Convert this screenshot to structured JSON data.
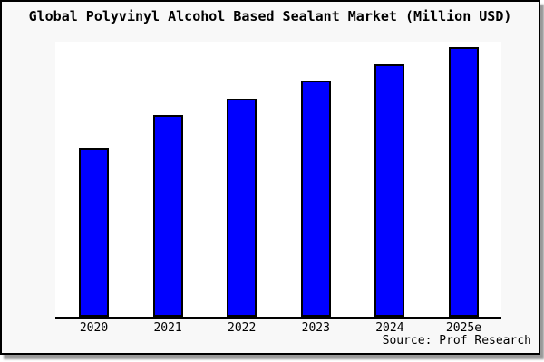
{
  "chart": {
    "title": "Global Polyvinyl Alcohol Based Sealant Market (Million USD)",
    "source": "Source: Prof Research"
  },
  "chart_data": {
    "type": "bar",
    "title": "Global Polyvinyl Alcohol Based Sealant Market (Million USD)",
    "categories": [
      "2020",
      "2021",
      "2022",
      "2023",
      "2024",
      "2025e"
    ],
    "values": [
      62.4,
      74.8,
      81.0,
      87.6,
      93.6,
      100
    ],
    "values_note": "Relative index estimated from bar heights (2025e = 100); no y-axis scale is shown in the chart",
    "xlabel": "",
    "ylabel": "",
    "y_axis_shown": false,
    "grid": false,
    "legend": false,
    "annotation": "Source: Prof Research",
    "bar_color": "#0000ff",
    "bar_border_color": "#000000",
    "background_color": "#f8f8f8",
    "plot_background_color": "#ffffff",
    "axis_color": "#000000"
  }
}
